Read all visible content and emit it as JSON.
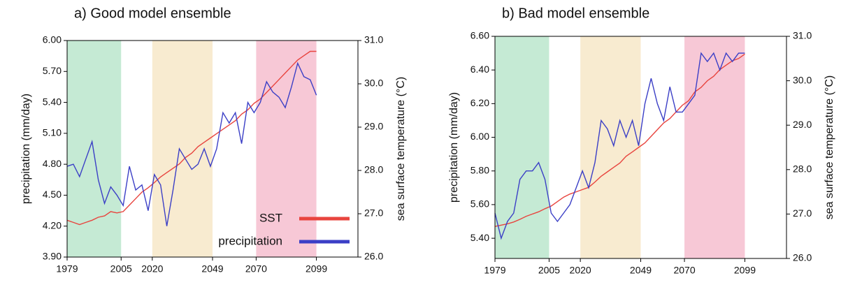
{
  "chart_data": [
    {
      "type": "line",
      "title": "a) Good model ensemble",
      "ylabel": "precipitation (mm/day)",
      "y2label": "sea surface temperature (°C)",
      "x": [
        1979,
        1982,
        1985,
        1988,
        1991,
        1994,
        1997,
        2000,
        2003,
        2006,
        2009,
        2012,
        2015,
        2018,
        2021,
        2024,
        2027,
        2030,
        2033,
        2036,
        2039,
        2042,
        2045,
        2048,
        2051,
        2054,
        2057,
        2060,
        2063,
        2066,
        2069,
        2072,
        2075,
        2078,
        2081,
        2084,
        2087,
        2090,
        2093,
        2096,
        2099
      ],
      "xlim": [
        1979,
        2119
      ],
      "xticks": [
        1979,
        2005,
        2020,
        2049,
        2070,
        2099
      ],
      "ylim": [
        3.9,
        6.0
      ],
      "yticks": [
        {
          "value": 3.9,
          "label": "3.90"
        },
        {
          "value": 4.2,
          "label": "4.20"
        },
        {
          "value": 4.5,
          "label": "4.50"
        },
        {
          "value": 4.8,
          "label": "4.80"
        },
        {
          "value": 5.1,
          "label": "5.10"
        },
        {
          "value": 5.4,
          "label": "5.40"
        },
        {
          "value": 5.7,
          "label": "5.70"
        },
        {
          "value": 6.0,
          "label": "6.00"
        }
      ],
      "y2lim": [
        26,
        31
      ],
      "y2ticks": [
        {
          "value": 26,
          "label": "26.0"
        },
        {
          "value": 27,
          "label": "27.0"
        },
        {
          "value": 28,
          "label": "28.0"
        },
        {
          "value": 29,
          "label": "29.0"
        },
        {
          "value": 30,
          "label": "30.0"
        },
        {
          "value": 31,
          "label": "31.0"
        }
      ],
      "periods": [
        {
          "start": 1979,
          "end": 2005,
          "color": "#c5ead4"
        },
        {
          "start": 2020,
          "end": 2049,
          "color": "#f8ebd0"
        },
        {
          "start": 2070,
          "end": 2099,
          "color": "#f7c8d6"
        }
      ],
      "legend": "lower right",
      "series": [
        {
          "name": "SST",
          "color": "#e8443e",
          "axis": "y2",
          "values": [
            26.85,
            26.8,
            26.75,
            26.8,
            26.85,
            26.92,
            26.95,
            27.05,
            27.02,
            27.05,
            27.2,
            27.35,
            27.5,
            27.6,
            27.72,
            27.85,
            27.95,
            28.05,
            28.15,
            28.3,
            28.4,
            28.55,
            28.65,
            28.75,
            28.85,
            28.95,
            29.05,
            29.15,
            29.3,
            29.4,
            29.55,
            29.65,
            29.8,
            29.95,
            30.1,
            30.25,
            30.4,
            30.55,
            30.65,
            30.75,
            30.75
          ]
        },
        {
          "name": "precipitation",
          "color": "#3b3fc6",
          "values": [
            4.78,
            4.8,
            4.68,
            4.85,
            5.02,
            4.65,
            4.42,
            4.58,
            4.5,
            4.4,
            4.78,
            4.55,
            4.6,
            4.35,
            4.7,
            4.6,
            4.2,
            4.55,
            4.95,
            4.85,
            4.75,
            4.8,
            4.95,
            4.78,
            4.95,
            5.3,
            5.2,
            5.3,
            5.0,
            5.4,
            5.3,
            5.4,
            5.6,
            5.5,
            5.45,
            5.35,
            5.55,
            5.78,
            5.65,
            5.62,
            5.47
          ]
        }
      ]
    },
    {
      "type": "line",
      "title": "b) Bad model ensemble",
      "ylabel": "precipitation (mm/day)",
      "y2label": "sea surface temperature (°C)",
      "x": [
        1979,
        1982,
        1985,
        1988,
        1991,
        1994,
        1997,
        2000,
        2003,
        2006,
        2009,
        2012,
        2015,
        2018,
        2021,
        2024,
        2027,
        2030,
        2033,
        2036,
        2039,
        2042,
        2045,
        2048,
        2051,
        2054,
        2057,
        2060,
        2063,
        2066,
        2069,
        2072,
        2075,
        2078,
        2081,
        2084,
        2087,
        2090,
        2093,
        2096,
        2099
      ],
      "xlim": [
        1979,
        2119
      ],
      "xticks": [
        1979,
        2005,
        2020,
        2049,
        2070,
        2099
      ],
      "ylim": [
        5.28,
        6.6
      ],
      "yticks": [
        {
          "value": 5.4,
          "label": "5.40"
        },
        {
          "value": 5.6,
          "label": "5.60"
        },
        {
          "value": 5.8,
          "label": "5.80"
        },
        {
          "value": 6.0,
          "label": "6.00"
        },
        {
          "value": 6.2,
          "label": "6.20"
        },
        {
          "value": 6.4,
          "label": "6.40"
        },
        {
          "value": 6.6,
          "label": "6.60"
        }
      ],
      "y2lim": [
        26,
        31
      ],
      "y2ticks": [
        {
          "value": 26,
          "label": "26.0"
        },
        {
          "value": 27,
          "label": "27.0"
        },
        {
          "value": 28,
          "label": "28.0"
        },
        {
          "value": 29,
          "label": "29.0"
        },
        {
          "value": 30,
          "label": "30.0"
        },
        {
          "value": 31,
          "label": "31.0"
        }
      ],
      "periods": [
        {
          "start": 1979,
          "end": 2005,
          "color": "#c5ead4"
        },
        {
          "start": 2020,
          "end": 2049,
          "color": "#f8ebd0"
        },
        {
          "start": 2070,
          "end": 2099,
          "color": "#f7c8d6"
        }
      ],
      "series": [
        {
          "color": "#e8443e",
          "axis": "y2",
          "values": [
            26.72,
            26.75,
            26.78,
            26.82,
            26.88,
            26.95,
            27.0,
            27.05,
            27.12,
            27.18,
            27.28,
            27.38,
            27.45,
            27.5,
            27.55,
            27.6,
            27.72,
            27.85,
            27.95,
            28.05,
            28.15,
            28.3,
            28.4,
            28.5,
            28.6,
            28.75,
            28.9,
            29.05,
            29.15,
            29.3,
            29.45,
            29.55,
            29.75,
            29.85,
            30.0,
            30.1,
            30.25,
            30.35,
            30.45,
            30.5,
            30.6
          ]
        },
        {
          "color": "#3b3fc6",
          "values": [
            5.55,
            5.4,
            5.5,
            5.55,
            5.75,
            5.8,
            5.8,
            5.85,
            5.75,
            5.55,
            5.5,
            5.55,
            5.6,
            5.7,
            5.8,
            5.7,
            5.85,
            6.1,
            6.05,
            5.95,
            6.1,
            6.0,
            6.1,
            5.95,
            6.2,
            6.35,
            6.2,
            6.1,
            6.3,
            6.15,
            6.15,
            6.2,
            6.25,
            6.5,
            6.45,
            6.5,
            6.4,
            6.5,
            6.45,
            6.5,
            6.5
          ]
        }
      ]
    }
  ]
}
